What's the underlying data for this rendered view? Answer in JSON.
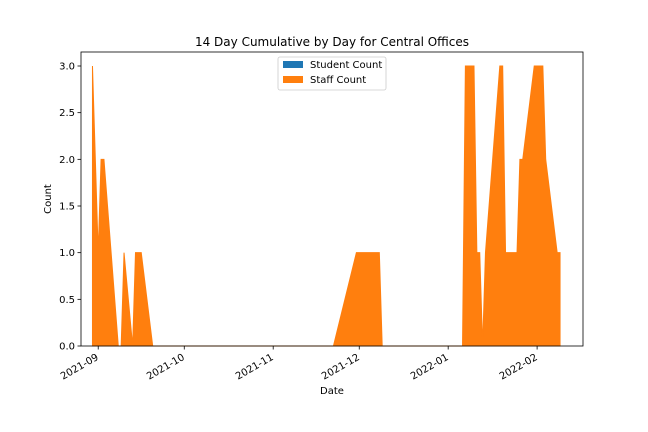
{
  "chart_data": {
    "type": "area",
    "title": "14 Day Cumulative by Day for Central Offices",
    "xlabel": "Date",
    "ylabel": "Count",
    "xlim": [
      "2021-08-26",
      "2022-02-17"
    ],
    "ylim": [
      0,
      3.15
    ],
    "x_ticks": [
      {
        "date": "2021-09-01",
        "label": "2021-09"
      },
      {
        "date": "2021-10-01",
        "label": "2021-10"
      },
      {
        "date": "2021-11-01",
        "label": "2021-11"
      },
      {
        "date": "2021-12-01",
        "label": "2021-12"
      },
      {
        "date": "2022-01-01",
        "label": "2022-01"
      },
      {
        "date": "2022-02-01",
        "label": "2022-02"
      }
    ],
    "y_ticks": [
      0.0,
      0.5,
      1.0,
      1.5,
      2.0,
      2.5,
      3.0
    ],
    "y_tick_labels": [
      "0.0",
      "0.5",
      "1.0",
      "1.5",
      "2.0",
      "2.5",
      "3.0"
    ],
    "grid": false,
    "legend_position": "top-center",
    "series": [
      {
        "name": "Student Count",
        "color": "#1f77b4",
        "points": [
          {
            "x": "2021-08-30",
            "y": 0
          },
          {
            "x": "2022-02-09",
            "y": 0
          }
        ]
      },
      {
        "name": "Staff Count",
        "color": "#ff7f0e",
        "points": [
          {
            "x": "2021-08-30",
            "y": 3
          },
          {
            "x": "2021-08-31",
            "y": 2
          },
          {
            "x": "2021-09-01",
            "y": 1
          },
          {
            "x": "2021-09-02",
            "y": 2
          },
          {
            "x": "2021-09-03",
            "y": 2
          },
          {
            "x": "2021-09-08",
            "y": 0
          },
          {
            "x": "2021-09-09",
            "y": 0
          },
          {
            "x": "2021-09-10",
            "y": 1
          },
          {
            "x": "2021-09-13",
            "y": 0
          },
          {
            "x": "2021-09-14",
            "y": 1
          },
          {
            "x": "2021-09-16",
            "y": 1
          },
          {
            "x": "2021-09-20",
            "y": 0
          },
          {
            "x": "2021-11-22",
            "y": 0
          },
          {
            "x": "2021-11-30",
            "y": 1
          },
          {
            "x": "2021-12-08",
            "y": 1
          },
          {
            "x": "2021-12-09",
            "y": 0
          },
          {
            "x": "2022-01-06",
            "y": 0
          },
          {
            "x": "2022-01-07",
            "y": 3
          },
          {
            "x": "2022-01-10",
            "y": 3
          },
          {
            "x": "2022-01-11",
            "y": 1
          },
          {
            "x": "2022-01-12",
            "y": 1
          },
          {
            "x": "2022-01-13",
            "y": 0
          },
          {
            "x": "2022-01-14",
            "y": 1
          },
          {
            "x": "2022-01-19",
            "y": 3
          },
          {
            "x": "2022-01-20",
            "y": 3
          },
          {
            "x": "2022-01-21",
            "y": 1
          },
          {
            "x": "2022-01-25",
            "y": 1
          },
          {
            "x": "2022-01-26",
            "y": 2
          },
          {
            "x": "2022-01-27",
            "y": 2
          },
          {
            "x": "2022-01-31",
            "y": 3
          },
          {
            "x": "2022-02-03",
            "y": 3
          },
          {
            "x": "2022-02-04",
            "y": 2
          },
          {
            "x": "2022-02-08",
            "y": 1
          },
          {
            "x": "2022-02-09",
            "y": 1
          }
        ]
      }
    ]
  }
}
